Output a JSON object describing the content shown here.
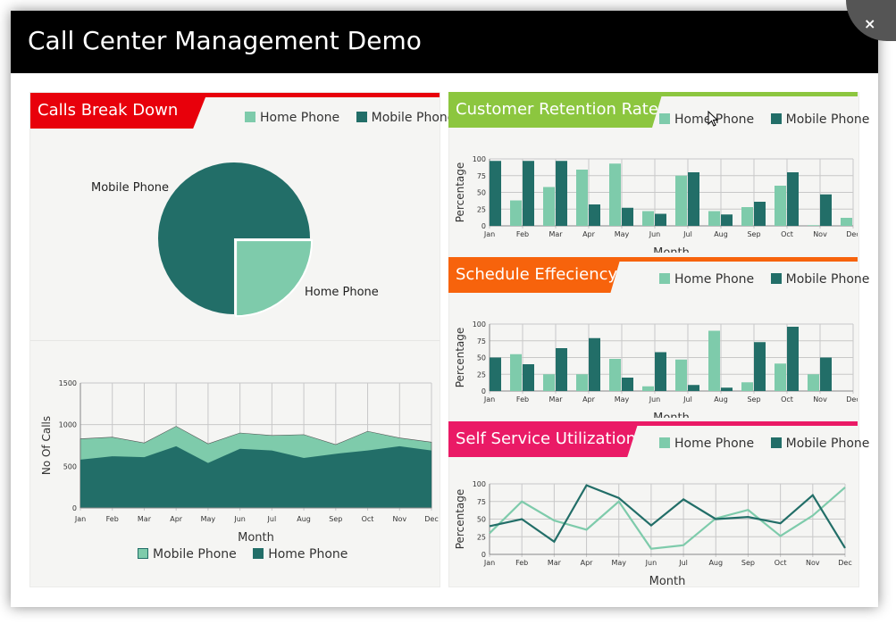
{
  "window": {
    "title": "Call Center Management Demo",
    "close_label": "×"
  },
  "colors": {
    "home": "#7ecbab",
    "mobile": "#226e68",
    "red": "#e8000b",
    "green": "#8cc63f",
    "orange": "#f7630c",
    "pink": "#ea1a66"
  },
  "months": [
    "Jan",
    "Feb",
    "Mar",
    "Apr",
    "May",
    "Jun",
    "Jul",
    "Aug",
    "Sep",
    "Oct",
    "Nov",
    "Dec"
  ],
  "breakdown": {
    "title": "Calls Break Down",
    "legend": [
      "Home Phone",
      "Mobile Phone"
    ],
    "pie": {
      "type": "pie",
      "slices": [
        {
          "label": "Mobile Phone",
          "value": 75
        },
        {
          "label": "Home Phone",
          "value": 25
        }
      ]
    },
    "area": {
      "type": "area",
      "ylabel": "No Of Calls",
      "xlabel": "Month",
      "ylim": [
        0,
        1500
      ],
      "yticks": [
        "0",
        "500",
        "1000",
        "1500"
      ],
      "legend": [
        "Mobile Phone",
        "Home Phone"
      ],
      "series": [
        {
          "name": "Mobile Phone",
          "values": [
            580,
            620,
            610,
            740,
            540,
            710,
            690,
            600,
            650,
            690,
            740,
            690
          ]
        },
        {
          "name": "Home Phone",
          "values": [
            830,
            850,
            780,
            980,
            770,
            900,
            870,
            880,
            760,
            920,
            840,
            790
          ]
        }
      ]
    }
  },
  "retention": {
    "title": "Customer Retention Rate",
    "legend": [
      "Home Phone",
      "Mobile Phone"
    ],
    "chart": {
      "type": "bar",
      "ylabel": "Percentage",
      "xlabel": "Month",
      "ylim": [
        0,
        100
      ],
      "yticks": [
        "0",
        "25",
        "50",
        "75",
        "100"
      ],
      "series": [
        {
          "name": "Home Phone",
          "values": [
            0,
            38,
            58,
            84,
            93,
            22,
            75,
            22,
            28,
            60,
            1,
            12
          ]
        },
        {
          "name": "Mobile Phone",
          "values": [
            97,
            97,
            97,
            32,
            27,
            18,
            80,
            17,
            36,
            80,
            47,
            0
          ]
        }
      ]
    }
  },
  "schedule": {
    "title": "Schedule Effeciency",
    "legend": [
      "Home Phone",
      "Mobile Phone"
    ],
    "chart": {
      "type": "bar",
      "ylabel": "Percentage",
      "xlabel": "Month",
      "ylim": [
        0,
        100
      ],
      "yticks": [
        "0",
        "25",
        "50",
        "75",
        "100"
      ],
      "series": [
        {
          "name": "Home Phone",
          "values": [
            0,
            55,
            25,
            25,
            48,
            7,
            47,
            90,
            13,
            41,
            25,
            0
          ]
        },
        {
          "name": "Mobile Phone",
          "values": [
            50,
            40,
            64,
            79,
            20,
            58,
            9,
            5,
            73,
            96,
            50,
            0
          ]
        }
      ]
    }
  },
  "selfservice": {
    "title": "Self Service Utilization",
    "legend": [
      "Home Phone",
      "Mobile Phone"
    ],
    "chart": {
      "type": "line",
      "ylabel": "Percentage",
      "xlabel": "Month",
      "ylim": [
        0,
        100
      ],
      "yticks": [
        "0",
        "25",
        "50",
        "75",
        "100"
      ],
      "series": [
        {
          "name": "Home Phone",
          "values": [
            30,
            75,
            48,
            35,
            75,
            8,
            13,
            51,
            63,
            26,
            55,
            95
          ]
        },
        {
          "name": "Mobile Phone",
          "values": [
            40,
            50,
            18,
            98,
            80,
            41,
            78,
            50,
            53,
            44,
            84,
            9
          ]
        }
      ]
    }
  }
}
